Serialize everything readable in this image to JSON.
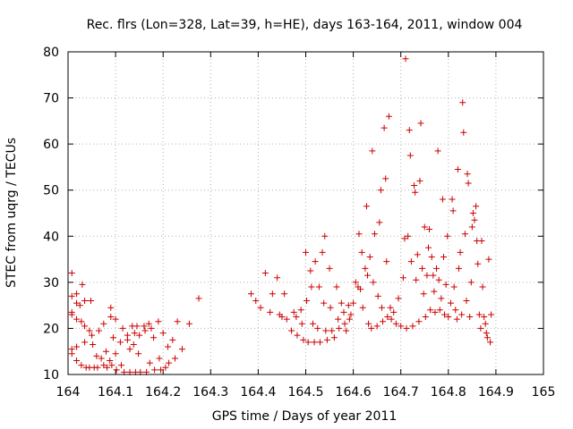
{
  "chart_data": {
    "type": "scatter",
    "title": "Rec. flrs (Lon=328, Lat=39, h=HE), days 163-164, 2011, window 004",
    "xlabel": "GPS time / Days of year 2011",
    "ylabel": "STEC from uqrg / TECUs",
    "xlim": [
      164,
      165
    ],
    "ylim": [
      10,
      80
    ],
    "x_ticks": [
      164,
      164.1,
      164.2,
      164.3,
      164.4,
      164.5,
      164.6,
      164.7,
      164.8,
      164.9,
      165
    ],
    "y_ticks": [
      10,
      20,
      30,
      40,
      50,
      60,
      70,
      80
    ],
    "x_tick_labels": [
      "164",
      "164.1",
      "164.2",
      "164.3",
      "164.4",
      "164.5",
      "164.6",
      "164.7",
      "164.8",
      "164.9",
      "165"
    ],
    "y_tick_labels": [
      "10",
      "20",
      "30",
      "40",
      "50",
      "60",
      "70",
      "80"
    ],
    "grid": true,
    "marker": "+",
    "color": "#cc0000",
    "series": [
      {
        "points": [
          [
            164.008,
            32.0
          ],
          [
            164.008,
            27.0
          ],
          [
            164.008,
            23.5
          ],
          [
            164.008,
            23.0
          ],
          [
            164.008,
            15.5
          ],
          [
            164.008,
            14.5
          ],
          [
            164.018,
            27.5
          ],
          [
            164.018,
            25.5
          ],
          [
            164.018,
            22.0
          ],
          [
            164.018,
            16.0
          ],
          [
            164.018,
            13.0
          ],
          [
            164.025,
            25.0
          ],
          [
            164.028,
            21.5
          ],
          [
            164.028,
            12.0
          ],
          [
            164.03,
            29.5
          ],
          [
            164.035,
            26.0
          ],
          [
            164.035,
            20.5
          ],
          [
            164.035,
            17.0
          ],
          [
            164.038,
            11.5
          ],
          [
            164.045,
            19.5
          ],
          [
            164.045,
            11.5
          ],
          [
            164.048,
            26.0
          ],
          [
            164.05,
            18.5
          ],
          [
            164.052,
            16.5
          ],
          [
            164.055,
            11.5
          ],
          [
            164.06,
            14.0
          ],
          [
            164.062,
            11.5
          ],
          [
            164.065,
            19.5
          ],
          [
            164.07,
            13.5
          ],
          [
            164.075,
            21.0
          ],
          [
            164.075,
            12.0
          ],
          [
            164.08,
            15.0
          ],
          [
            164.082,
            11.5
          ],
          [
            164.088,
            13.0
          ],
          [
            164.09,
            24.5
          ],
          [
            164.09,
            22.5
          ],
          [
            164.092,
            12.0
          ],
          [
            164.095,
            18.0
          ],
          [
            164.1,
            22.0
          ],
          [
            164.1,
            14.5
          ],
          [
            164.102,
            11.0
          ],
          [
            164.11,
            17.0
          ],
          [
            164.112,
            12.0
          ],
          [
            164.115,
            20.0
          ],
          [
            164.118,
            10.5
          ],
          [
            164.125,
            18.5
          ],
          [
            164.125,
            17.5
          ],
          [
            164.13,
            15.5
          ],
          [
            164.13,
            10.5
          ],
          [
            164.135,
            20.5
          ],
          [
            164.138,
            16.5
          ],
          [
            164.14,
            19.0
          ],
          [
            164.142,
            10.5
          ],
          [
            164.145,
            20.5
          ],
          [
            164.148,
            14.5
          ],
          [
            164.15,
            18.5
          ],
          [
            164.152,
            10.5
          ],
          [
            164.16,
            20.5
          ],
          [
            164.162,
            19.5
          ],
          [
            164.165,
            10.5
          ],
          [
            164.17,
            21.0
          ],
          [
            164.172,
            12.5
          ],
          [
            164.175,
            20.0
          ],
          [
            164.18,
            18.0
          ],
          [
            164.182,
            11.0
          ],
          [
            164.19,
            21.5
          ],
          [
            164.192,
            13.5
          ],
          [
            164.195,
            11.0
          ],
          [
            164.2,
            19.0
          ],
          [
            164.205,
            11.5
          ],
          [
            164.21,
            16.0
          ],
          [
            164.212,
            12.5
          ],
          [
            164.22,
            17.5
          ],
          [
            164.225,
            13.5
          ],
          [
            164.23,
            21.5
          ],
          [
            164.24,
            15.5
          ],
          [
            164.255,
            21.0
          ],
          [
            164.275,
            26.5
          ],
          [
            164.385,
            27.5
          ],
          [
            164.395,
            26.0
          ],
          [
            164.405,
            24.5
          ],
          [
            164.415,
            32.0
          ],
          [
            164.425,
            23.5
          ],
          [
            164.43,
            27.5
          ],
          [
            164.44,
            31.0
          ],
          [
            164.445,
            23.0
          ],
          [
            164.45,
            22.5
          ],
          [
            164.455,
            27.5
          ],
          [
            164.46,
            22.0
          ],
          [
            164.47,
            19.5
          ],
          [
            164.475,
            23.5
          ],
          [
            164.48,
            22.5
          ],
          [
            164.482,
            18.5
          ],
          [
            164.49,
            24.0
          ],
          [
            164.492,
            21.0
          ],
          [
            164.495,
            17.5
          ],
          [
            164.5,
            36.5
          ],
          [
            164.502,
            26.0
          ],
          [
            164.505,
            17.0
          ],
          [
            164.51,
            32.5
          ],
          [
            164.512,
            29.0
          ],
          [
            164.515,
            21.0
          ],
          [
            164.518,
            17.0
          ],
          [
            164.52,
            34.5
          ],
          [
            164.525,
            20.0
          ],
          [
            164.528,
            29.0
          ],
          [
            164.53,
            17.0
          ],
          [
            164.535,
            36.5
          ],
          [
            164.538,
            25.5
          ],
          [
            164.54,
            40.0
          ],
          [
            164.542,
            19.5
          ],
          [
            164.545,
            17.5
          ],
          [
            164.55,
            33.0
          ],
          [
            164.552,
            24.5
          ],
          [
            164.555,
            19.5
          ],
          [
            164.56,
            18.0
          ],
          [
            164.565,
            29.0
          ],
          [
            164.568,
            22.0
          ],
          [
            164.57,
            20.0
          ],
          [
            164.575,
            25.5
          ],
          [
            164.58,
            23.5
          ],
          [
            164.582,
            21.0
          ],
          [
            164.585,
            19.5
          ],
          [
            164.59,
            25.0
          ],
          [
            164.592,
            22.0
          ],
          [
            164.595,
            23.0
          ],
          [
            164.6,
            25.5
          ],
          [
            164.605,
            30.0
          ],
          [
            164.61,
            29.0
          ],
          [
            164.612,
            40.5
          ],
          [
            164.615,
            28.5
          ],
          [
            164.618,
            36.5
          ],
          [
            164.62,
            24.5
          ],
          [
            164.625,
            33.0
          ],
          [
            164.628,
            46.5
          ],
          [
            164.63,
            31.5
          ],
          [
            164.632,
            21.0
          ],
          [
            164.635,
            35.5
          ],
          [
            164.638,
            20.0
          ],
          [
            164.64,
            58.5
          ],
          [
            164.642,
            30.0
          ],
          [
            164.645,
            40.5
          ],
          [
            164.65,
            20.5
          ],
          [
            164.652,
            27.0
          ],
          [
            164.655,
            43.0
          ],
          [
            164.658,
            50.0
          ],
          [
            164.66,
            24.5
          ],
          [
            164.662,
            21.5
          ],
          [
            164.665,
            63.5
          ],
          [
            164.668,
            52.5
          ],
          [
            164.67,
            34.5
          ],
          [
            164.672,
            22.5
          ],
          [
            164.675,
            66.0
          ],
          [
            164.678,
            24.5
          ],
          [
            164.68,
            22.0
          ],
          [
            164.685,
            23.5
          ],
          [
            164.69,
            21.0
          ],
          [
            164.695,
            26.5
          ],
          [
            164.7,
            20.5
          ],
          [
            164.705,
            31.0
          ],
          [
            164.708,
            39.5
          ],
          [
            164.71,
            78.5
          ],
          [
            164.712,
            20.0
          ],
          [
            164.715,
            40.0
          ],
          [
            164.718,
            63.0
          ],
          [
            164.72,
            57.5
          ],
          [
            164.722,
            34.5
          ],
          [
            164.725,
            20.5
          ],
          [
            164.728,
            51.0
          ],
          [
            164.73,
            49.5
          ],
          [
            164.732,
            30.5
          ],
          [
            164.735,
            36.0
          ],
          [
            164.738,
            21.5
          ],
          [
            164.74,
            52.0
          ],
          [
            164.742,
            64.5
          ],
          [
            164.745,
            33.0
          ],
          [
            164.748,
            27.5
          ],
          [
            164.75,
            42.0
          ],
          [
            164.752,
            22.5
          ],
          [
            164.755,
            31.5
          ],
          [
            164.758,
            37.5
          ],
          [
            164.76,
            41.5
          ],
          [
            164.762,
            24.0
          ],
          [
            164.765,
            35.5
          ],
          [
            164.768,
            31.5
          ],
          [
            164.77,
            28.0
          ],
          [
            164.772,
            23.5
          ],
          [
            164.775,
            33.0
          ],
          [
            164.778,
            58.5
          ],
          [
            164.78,
            30.5
          ],
          [
            164.782,
            24.0
          ],
          [
            164.785,
            26.5
          ],
          [
            164.788,
            48.0
          ],
          [
            164.79,
            35.5
          ],
          [
            164.792,
            23.0
          ],
          [
            164.795,
            29.5
          ],
          [
            164.798,
            40.0
          ],
          [
            164.8,
            22.5
          ],
          [
            164.805,
            25.5
          ],
          [
            164.808,
            48.0
          ],
          [
            164.81,
            45.5
          ],
          [
            164.812,
            29.0
          ],
          [
            164.815,
            24.0
          ],
          [
            164.818,
            22.0
          ],
          [
            164.82,
            54.5
          ],
          [
            164.822,
            33.0
          ],
          [
            164.825,
            36.5
          ],
          [
            164.828,
            23.0
          ],
          [
            164.83,
            69.0
          ],
          [
            164.832,
            62.5
          ],
          [
            164.835,
            40.5
          ],
          [
            164.838,
            26.0
          ],
          [
            164.84,
            53.5
          ],
          [
            164.842,
            51.5
          ],
          [
            164.845,
            22.5
          ],
          [
            164.848,
            30.0
          ],
          [
            164.85,
            42.0
          ],
          [
            164.852,
            45.0
          ],
          [
            164.855,
            43.5
          ],
          [
            164.858,
            46.5
          ],
          [
            164.86,
            39.0
          ],
          [
            164.862,
            34.0
          ],
          [
            164.865,
            23.0
          ],
          [
            164.868,
            20.0
          ],
          [
            164.87,
            39.0
          ],
          [
            164.872,
            29.0
          ],
          [
            164.875,
            22.5
          ],
          [
            164.878,
            21.0
          ],
          [
            164.88,
            19.0
          ],
          [
            164.882,
            18.0
          ],
          [
            164.885,
            35.0
          ],
          [
            164.888,
            17.0
          ],
          [
            164.89,
            23.0
          ]
        ]
      }
    ]
  }
}
